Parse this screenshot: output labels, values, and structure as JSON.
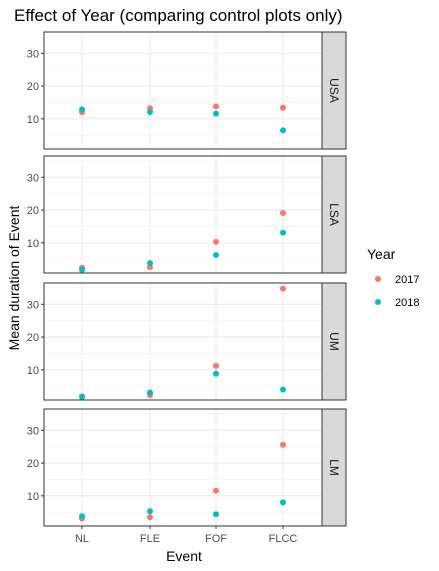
{
  "chart_data": {
    "type": "scatter",
    "title": "Effect of Year (comparing control plots only)",
    "xlabel": "Event",
    "ylabel": "Mean duration of Event",
    "categories": [
      "NL",
      "FLE",
      "FOF",
      "FLCC"
    ],
    "ylim": [
      0.8,
      36.5
    ],
    "yticks": [
      10,
      20,
      30
    ],
    "grid": true,
    "legend": {
      "title": "Year",
      "placement": "right",
      "entries": [
        {
          "label": "2017",
          "color": "#f8766d"
        },
        {
          "label": "2018",
          "color": "#00bfc4"
        }
      ]
    },
    "facets": [
      {
        "label": "USA",
        "series": [
          {
            "name": "2017",
            "values": [
              12.0,
              13.2,
              13.8,
              13.4
            ]
          },
          {
            "name": "2018",
            "values": [
              12.9,
              12.1,
              11.6,
              6.5
            ]
          }
        ]
      },
      {
        "label": "LSA",
        "series": [
          {
            "name": "2017",
            "values": [
              2.4,
              2.6,
              10.3,
              19.1
            ]
          },
          {
            "name": "2018",
            "values": [
              1.8,
              3.8,
              6.3,
              13.1
            ]
          }
        ]
      },
      {
        "label": "UM",
        "series": [
          {
            "name": "2017",
            "values": [
              1.9,
              2.3,
              11.2,
              34.8
            ]
          },
          {
            "name": "2018",
            "values": [
              1.7,
              3.1,
              8.8,
              4.0
            ]
          }
        ]
      },
      {
        "label": "LM",
        "series": [
          {
            "name": "2017",
            "values": [
              3.1,
              3.5,
              11.6,
              25.6
            ]
          },
          {
            "name": "2018",
            "values": [
              3.8,
              5.3,
              4.4,
              8.0
            ]
          }
        ]
      }
    ]
  }
}
